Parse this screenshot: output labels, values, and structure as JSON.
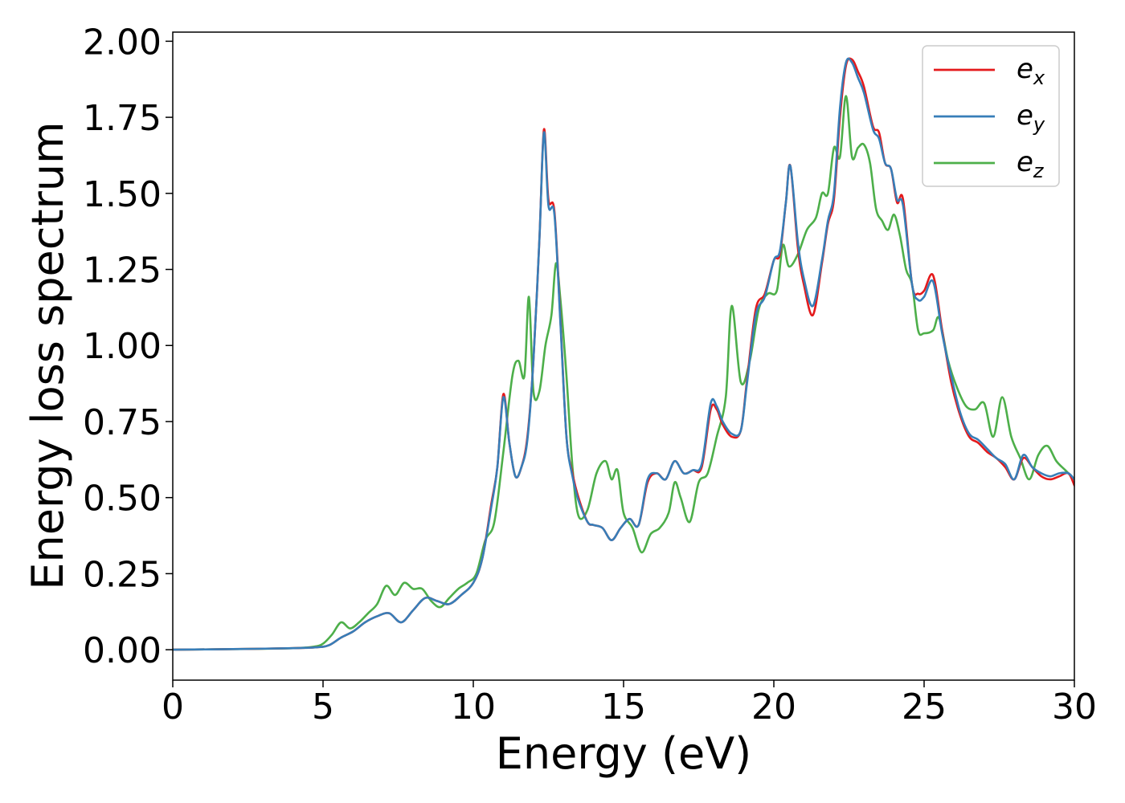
{
  "chart_data": {
    "type": "line",
    "title": "",
    "xlabel": "Energy (eV)",
    "ylabel": "Energy loss spectrum",
    "xlim": [
      0,
      30
    ],
    "ylim": [
      -0.1,
      2.03
    ],
    "x_ticks": [
      "0",
      "5",
      "10",
      "15",
      "20",
      "25",
      "30"
    ],
    "y_ticks": [
      "0.00",
      "0.25",
      "0.50",
      "0.75",
      "1.00",
      "1.25",
      "1.50",
      "1.75",
      "2.00"
    ],
    "grid": false,
    "legend_position": "top-right",
    "series": [
      {
        "name": "e_x",
        "legend_base": "e",
        "legend_sub": "x",
        "color": "#e41a1c",
        "x": [
          0,
          2,
          4,
          4.8,
          5.2,
          5.6,
          6.0,
          6.4,
          6.8,
          7.2,
          7.6,
          8.0,
          8.4,
          8.8,
          9.2,
          9.6,
          10.0,
          10.3,
          10.6,
          10.8,
          11.0,
          11.2,
          11.4,
          11.6,
          11.8,
          12.0,
          12.2,
          12.35,
          12.5,
          12.7,
          12.9,
          13.1,
          13.3,
          13.5,
          13.8,
          14.0,
          14.3,
          14.6,
          14.9,
          15.2,
          15.5,
          15.8,
          16.1,
          16.4,
          16.7,
          17.0,
          17.3,
          17.6,
          17.9,
          18.1,
          18.3,
          18.6,
          18.9,
          19.1,
          19.4,
          19.7,
          20.0,
          20.2,
          20.4,
          20.55,
          20.8,
          21.0,
          21.3,
          21.6,
          21.8,
          22.0,
          22.2,
          22.4,
          22.6,
          22.8,
          23.0,
          23.3,
          23.5,
          23.7,
          23.9,
          24.1,
          24.3,
          24.6,
          24.8,
          25.0,
          25.3,
          25.6,
          25.9,
          26.2,
          26.5,
          26.8,
          27.1,
          27.4,
          27.7,
          28.0,
          28.3,
          28.6,
          28.9,
          29.2,
          29.5,
          29.8,
          30.0
        ],
        "y": [
          0.0,
          0.002,
          0.005,
          0.008,
          0.015,
          0.04,
          0.06,
          0.09,
          0.11,
          0.12,
          0.09,
          0.13,
          0.17,
          0.16,
          0.15,
          0.18,
          0.22,
          0.3,
          0.48,
          0.6,
          0.84,
          0.68,
          0.57,
          0.6,
          0.7,
          0.95,
          1.35,
          1.71,
          1.48,
          1.44,
          1.08,
          0.7,
          0.58,
          0.5,
          0.42,
          0.41,
          0.4,
          0.36,
          0.4,
          0.43,
          0.41,
          0.55,
          0.58,
          0.56,
          0.62,
          0.58,
          0.59,
          0.6,
          0.79,
          0.79,
          0.74,
          0.7,
          0.72,
          0.88,
          1.12,
          1.17,
          1.28,
          1.3,
          1.47,
          1.59,
          1.32,
          1.2,
          1.1,
          1.27,
          1.4,
          1.48,
          1.75,
          1.92,
          1.94,
          1.9,
          1.85,
          1.72,
          1.7,
          1.6,
          1.58,
          1.47,
          1.48,
          1.2,
          1.17,
          1.18,
          1.23,
          1.05,
          0.88,
          0.77,
          0.7,
          0.68,
          0.65,
          0.63,
          0.6,
          0.56,
          0.63,
          0.6,
          0.57,
          0.56,
          0.57,
          0.58,
          0.54
        ]
      },
      {
        "name": "e_y",
        "legend_base": "e",
        "legend_sub": "y",
        "color": "#377eb8",
        "x": [
          0,
          2,
          4,
          4.8,
          5.2,
          5.6,
          6.0,
          6.4,
          6.8,
          7.2,
          7.6,
          8.0,
          8.4,
          8.8,
          9.2,
          9.6,
          10.0,
          10.3,
          10.6,
          10.8,
          11.0,
          11.2,
          11.4,
          11.6,
          11.8,
          12.0,
          12.2,
          12.35,
          12.5,
          12.7,
          12.9,
          13.1,
          13.3,
          13.5,
          13.8,
          14.0,
          14.3,
          14.6,
          14.9,
          15.2,
          15.5,
          15.8,
          16.1,
          16.4,
          16.7,
          17.0,
          17.3,
          17.6,
          17.9,
          18.1,
          18.3,
          18.6,
          18.9,
          19.1,
          19.4,
          19.7,
          20.0,
          20.2,
          20.4,
          20.55,
          20.8,
          21.0,
          21.3,
          21.6,
          21.8,
          22.0,
          22.2,
          22.4,
          22.6,
          22.8,
          23.0,
          23.3,
          23.5,
          23.7,
          23.9,
          24.1,
          24.3,
          24.6,
          24.8,
          25.0,
          25.3,
          25.6,
          25.9,
          26.2,
          26.5,
          26.8,
          27.1,
          27.4,
          27.7,
          28.0,
          28.3,
          28.6,
          28.9,
          29.2,
          29.5,
          29.8,
          30.0
        ],
        "y": [
          0.0,
          0.002,
          0.005,
          0.008,
          0.015,
          0.04,
          0.06,
          0.09,
          0.11,
          0.12,
          0.09,
          0.13,
          0.17,
          0.16,
          0.15,
          0.18,
          0.22,
          0.3,
          0.47,
          0.6,
          0.83,
          0.68,
          0.57,
          0.6,
          0.69,
          0.95,
          1.35,
          1.7,
          1.46,
          1.43,
          1.07,
          0.7,
          0.57,
          0.49,
          0.42,
          0.41,
          0.4,
          0.36,
          0.4,
          0.43,
          0.41,
          0.56,
          0.58,
          0.56,
          0.62,
          0.58,
          0.59,
          0.61,
          0.81,
          0.8,
          0.75,
          0.71,
          0.72,
          0.87,
          1.1,
          1.16,
          1.28,
          1.31,
          1.47,
          1.59,
          1.34,
          1.22,
          1.13,
          1.28,
          1.41,
          1.5,
          1.78,
          1.93,
          1.93,
          1.88,
          1.83,
          1.71,
          1.68,
          1.6,
          1.58,
          1.48,
          1.46,
          1.2,
          1.15,
          1.16,
          1.21,
          1.04,
          0.9,
          0.78,
          0.71,
          0.69,
          0.66,
          0.63,
          0.61,
          0.56,
          0.64,
          0.6,
          0.58,
          0.57,
          0.58,
          0.58,
          0.56
        ]
      },
      {
        "name": "e_z",
        "legend_base": "e",
        "legend_sub": "z",
        "color": "#4daf4a",
        "x": [
          0,
          2,
          4,
          4.7,
          5.0,
          5.3,
          5.6,
          5.9,
          6.2,
          6.5,
          6.8,
          7.1,
          7.4,
          7.7,
          8.0,
          8.3,
          8.6,
          8.9,
          9.2,
          9.5,
          9.8,
          10.1,
          10.4,
          10.7,
          11.0,
          11.3,
          11.5,
          11.7,
          11.85,
          12.0,
          12.2,
          12.4,
          12.6,
          12.75,
          12.9,
          13.1,
          13.3,
          13.5,
          13.8,
          14.1,
          14.4,
          14.6,
          14.8,
          15.0,
          15.3,
          15.6,
          15.9,
          16.2,
          16.5,
          16.7,
          16.9,
          17.2,
          17.5,
          17.8,
          18.1,
          18.4,
          18.6,
          18.9,
          19.2,
          19.5,
          19.8,
          20.1,
          20.3,
          20.5,
          20.8,
          21.1,
          21.4,
          21.6,
          21.8,
          22.0,
          22.2,
          22.4,
          22.6,
          22.8,
          23.0,
          23.2,
          23.4,
          23.6,
          23.8,
          24.0,
          24.2,
          24.4,
          24.6,
          24.8,
          25.0,
          25.3,
          25.5,
          25.8,
          26.1,
          26.4,
          26.7,
          27.0,
          27.3,
          27.6,
          27.9,
          28.2,
          28.5,
          28.8,
          29.1,
          29.4,
          29.7,
          30.0
        ],
        "y": [
          0.0,
          0.002,
          0.005,
          0.01,
          0.02,
          0.05,
          0.09,
          0.07,
          0.09,
          0.12,
          0.15,
          0.21,
          0.18,
          0.22,
          0.2,
          0.2,
          0.16,
          0.14,
          0.17,
          0.2,
          0.22,
          0.25,
          0.36,
          0.42,
          0.65,
          0.9,
          0.95,
          0.9,
          1.16,
          0.85,
          0.85,
          1.0,
          1.1,
          1.27,
          1.15,
          0.9,
          0.6,
          0.44,
          0.46,
          0.58,
          0.62,
          0.56,
          0.59,
          0.45,
          0.4,
          0.32,
          0.38,
          0.4,
          0.45,
          0.55,
          0.5,
          0.42,
          0.55,
          0.58,
          0.7,
          0.83,
          1.13,
          0.88,
          0.95,
          1.12,
          1.17,
          1.18,
          1.33,
          1.26,
          1.3,
          1.38,
          1.42,
          1.5,
          1.5,
          1.65,
          1.62,
          1.82,
          1.62,
          1.65,
          1.66,
          1.6,
          1.45,
          1.41,
          1.38,
          1.43,
          1.36,
          1.25,
          1.2,
          1.05,
          1.04,
          1.05,
          1.09,
          0.95,
          0.86,
          0.8,
          0.79,
          0.81,
          0.7,
          0.83,
          0.7,
          0.63,
          0.56,
          0.64,
          0.67,
          0.62,
          0.59,
          0.56
        ]
      }
    ]
  }
}
